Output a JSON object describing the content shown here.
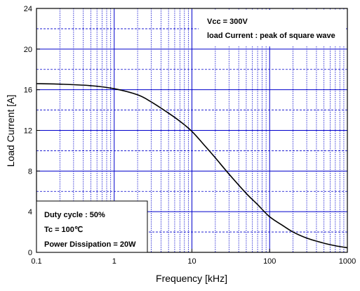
{
  "chart_data": {
    "type": "line",
    "xlabel": "Frequency [kHz]",
    "ylabel": "Load Current [A]",
    "xscale": "log",
    "xlim": [
      0.1,
      1000
    ],
    "ylim": [
      0,
      24
    ],
    "grid": true,
    "x_ticks": [
      "0.1",
      "1",
      "10",
      "100",
      "1000"
    ],
    "y_ticks": [
      "0",
      "4",
      "8",
      "12",
      "16",
      "20",
      "24"
    ],
    "series": [
      {
        "x": [
          0.1,
          0.2,
          0.5,
          1,
          2,
          3,
          5,
          7,
          10,
          15,
          20,
          30,
          50,
          70,
          100,
          150,
          200,
          300,
          500,
          700,
          1000
        ],
        "y": [
          16.6,
          16.55,
          16.4,
          16.1,
          15.5,
          14.8,
          13.7,
          12.9,
          11.9,
          10.4,
          9.3,
          7.7,
          5.8,
          4.7,
          3.5,
          2.6,
          2.0,
          1.4,
          0.9,
          0.65,
          0.45
        ]
      }
    ],
    "annotations": {
      "top_right": [
        "Vcc = 300V",
        "load Current : peak of square wave"
      ],
      "bottom_left": [
        "Duty cycle : 50%",
        "Tc = 100℃",
        "Power Dissipation = 20W"
      ]
    },
    "colors": {
      "grid": "#0000cc",
      "curve": "#000000",
      "frame": "#000000"
    }
  }
}
